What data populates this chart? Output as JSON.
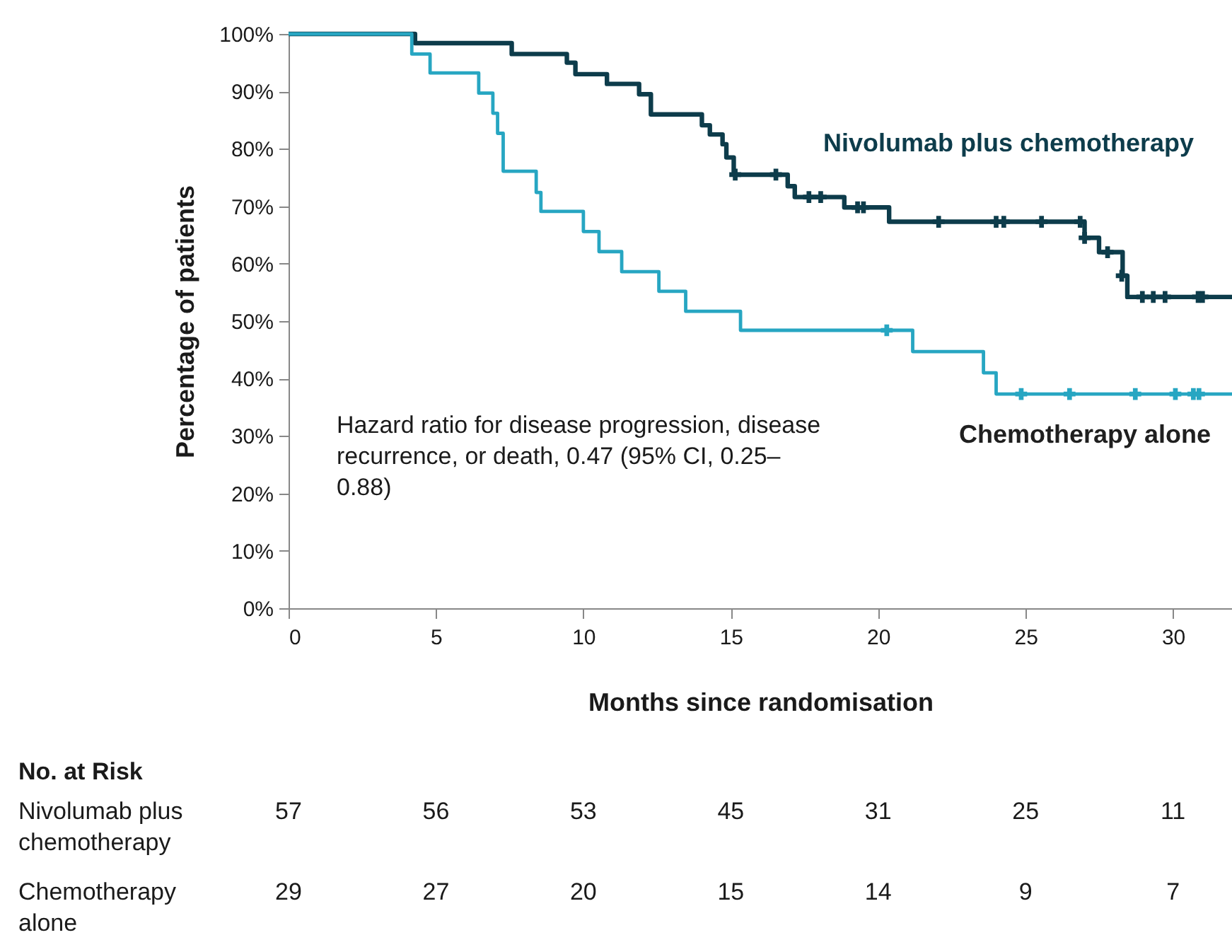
{
  "chart_data": {
    "type": "step",
    "xlabel": "Months since randomisation",
    "ylabel": "Percentage of patients",
    "xlim": [
      0,
      32
    ],
    "xticks": [
      0,
      5,
      10,
      15,
      20,
      25,
      30
    ],
    "ylim": [
      0,
      100
    ],
    "yticks": [
      {
        "value": 0,
        "label": "0%"
      },
      {
        "value": 10,
        "label": "10%"
      },
      {
        "value": 20,
        "label": "20%"
      },
      {
        "value": 30,
        "label": "30%"
      },
      {
        "value": 40,
        "label": "40%"
      },
      {
        "value": 50,
        "label": "50%"
      },
      {
        "value": 60,
        "label": "60%"
      },
      {
        "value": 70,
        "label": "70%"
      },
      {
        "value": 80,
        "label": "80%"
      },
      {
        "value": 90,
        "label": "90%"
      },
      {
        "value": 100,
        "label": "100%"
      }
    ],
    "grid": false,
    "series": [
      {
        "name": "Nivolumab plus chemotherapy",
        "type": "step",
        "color": "#0d3c4b",
        "x": [
          0,
          4.29,
          7.57,
          9.44,
          9.73,
          10.8,
          11.89,
          12.29,
          14.02,
          14.29,
          14.72,
          14.85,
          15.1,
          16.93,
          17.17,
          18.85,
          20.37,
          27.0,
          27.49,
          28.29,
          28.45,
          32
        ],
        "values": [
          100,
          98.4,
          96.5,
          95.0,
          93.0,
          91.3,
          89.5,
          86.0,
          84.1,
          82.5,
          80.8,
          78.5,
          75.5,
          73.5,
          71.6,
          69.8,
          67.3,
          64.5,
          62.0,
          57.9,
          54.2,
          54.2
        ]
      },
      {
        "name": "Chemotherapy alone",
        "type": "step",
        "color": "#27a6c2",
        "x": [
          0,
          4.18,
          4.8,
          6.45,
          6.93,
          7.09,
          7.28,
          8.4,
          8.56,
          10.0,
          10.53,
          11.3,
          12.56,
          13.47,
          15.33,
          21.17,
          23.57,
          24.0,
          32
        ],
        "values": [
          100,
          96.5,
          93.2,
          89.7,
          86.2,
          82.7,
          76.1,
          72.4,
          69.1,
          65.6,
          62.1,
          58.6,
          55.2,
          51.7,
          48.4,
          44.7,
          41.0,
          37.3,
          37.3
        ]
      },
      {
        "type": "scatter",
        "marker": "cross",
        "color": "#0d3c4b",
        "x": [
          15.15,
          16.53,
          17.65,
          18.05,
          19.3,
          19.5,
          22.05,
          24.0,
          24.26,
          25.54,
          26.85,
          27.0,
          27.78,
          28.26,
          28.96,
          29.33,
          29.73,
          30.85,
          31.0
        ],
        "values": [
          75.5,
          75.5,
          71.6,
          71.6,
          69.8,
          69.8,
          67.3,
          67.3,
          67.3,
          67.3,
          67.3,
          64.5,
          62.0,
          57.9,
          54.2,
          54.2,
          54.2,
          54.2,
          54.2
        ]
      },
      {
        "type": "scatter",
        "marker": "cross",
        "color": "#27a6c2",
        "x": [
          20.29,
          24.85,
          26.49,
          28.72,
          30.08,
          30.69,
          30.88
        ],
        "values": [
          48.4,
          37.3,
          37.3,
          37.3,
          37.3,
          37.3,
          37.3
        ]
      }
    ],
    "annotations": [
      "Hazard ratio for disease progression, disease recurrence, or death, 0.47 (95% CI, 0.25–0.88)",
      "No. at Risk",
      "Nivolumab plus chemotherapy",
      "57",
      "56",
      "53",
      "45",
      "31",
      "25",
      "11",
      "Chemotherapy alone",
      "29",
      "27",
      "20",
      "15",
      "14",
      "9",
      "7"
    ]
  }
}
